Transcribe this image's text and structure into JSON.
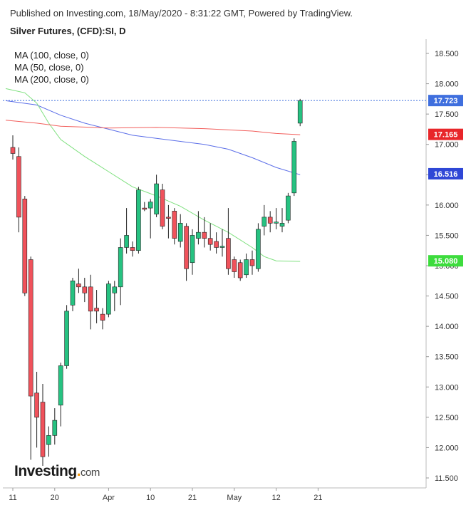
{
  "header": {
    "published": "Published on Investing.com, 18/May/2020 - 8:31:22 GMT, Powered by TradingView.",
    "title": "Silver Futures, (CFD):SI, D"
  },
  "legend": {
    "ma100": "MA (100, close, 0)",
    "ma50": "MA (50, close, 0)",
    "ma200": "MA (200, close, 0)"
  },
  "logo": {
    "brand": "Investing",
    "suffix": "com"
  },
  "colors": {
    "up": "#26c281",
    "down": "#f0525b",
    "ma100": "#5b6ee8",
    "ma50": "#7ee07e",
    "ma200": "#f25f5c",
    "last_price": "#3f6fde",
    "axis_text": "#333333"
  },
  "chart_data": {
    "type": "candlestick",
    "instrument": "Silver Futures, (CFD):SI",
    "interval": "D",
    "y_axis": {
      "position": "right",
      "ylim": [
        11.4,
        18.65
      ],
      "ticks": [
        "18.500",
        "18.000",
        "17.500",
        "17.000",
        "16.500",
        "16.000",
        "15.500",
        "15.000",
        "14.500",
        "14.000",
        "13.500",
        "13.000",
        "12.500",
        "12.000",
        "11.500"
      ]
    },
    "x_axis": {
      "ticks": [
        {
          "label": "11",
          "index": 0
        },
        {
          "label": "20",
          "index": 7
        },
        {
          "label": "Apr",
          "index": 16
        },
        {
          "label": "10",
          "index": 23
        },
        {
          "label": "21",
          "index": 30
        },
        {
          "label": "May",
          "index": 37
        },
        {
          "label": "12",
          "index": 44
        },
        {
          "label": "21",
          "index": 51
        }
      ]
    },
    "candles": [
      {
        "o": 16.95,
        "h": 17.15,
        "l": 16.75,
        "c": 16.85
      },
      {
        "o": 16.8,
        "h": 16.95,
        "l": 15.55,
        "c": 15.8
      },
      {
        "o": 16.1,
        "h": 16.15,
        "l": 14.5,
        "c": 14.55
      },
      {
        "o": 15.1,
        "h": 15.15,
        "l": 11.8,
        "c": 12.85
      },
      {
        "o": 12.9,
        "h": 13.25,
        "l": 12.0,
        "c": 12.5
      },
      {
        "o": 12.75,
        "h": 13.05,
        "l": 11.7,
        "c": 11.85
      },
      {
        "o": 12.05,
        "h": 12.35,
        "l": 11.85,
        "c": 12.2
      },
      {
        "o": 12.2,
        "h": 12.65,
        "l": 12.05,
        "c": 12.45
      },
      {
        "o": 12.7,
        "h": 13.4,
        "l": 12.35,
        "c": 13.35
      },
      {
        "o": 13.35,
        "h": 14.35,
        "l": 13.3,
        "c": 14.25
      },
      {
        "o": 14.35,
        "h": 14.8,
        "l": 14.25,
        "c": 14.75
      },
      {
        "o": 14.7,
        "h": 14.95,
        "l": 14.55,
        "c": 14.65
      },
      {
        "o": 14.65,
        "h": 14.8,
        "l": 14.4,
        "c": 14.55
      },
      {
        "o": 14.65,
        "h": 14.85,
        "l": 13.95,
        "c": 14.25
      },
      {
        "o": 14.3,
        "h": 14.6,
        "l": 14.05,
        "c": 14.25
      },
      {
        "o": 14.2,
        "h": 14.3,
        "l": 13.95,
        "c": 14.1
      },
      {
        "o": 14.2,
        "h": 14.75,
        "l": 14.15,
        "c": 14.7
      },
      {
        "o": 14.55,
        "h": 14.75,
        "l": 14.25,
        "c": 14.65
      },
      {
        "o": 14.65,
        "h": 15.45,
        "l": 14.35,
        "c": 15.3
      },
      {
        "o": 15.3,
        "h": 15.95,
        "l": 15.2,
        "c": 15.5
      },
      {
        "o": 15.3,
        "h": 15.4,
        "l": 15.15,
        "c": 15.25
      },
      {
        "o": 15.25,
        "h": 16.3,
        "l": 15.2,
        "c": 16.25
      },
      {
        "o": 15.95,
        "h": 16.05,
        "l": 15.9,
        "c": 15.93
      },
      {
        "o": 15.95,
        "h": 16.1,
        "l": 15.45,
        "c": 16.05
      },
      {
        "o": 15.85,
        "h": 16.5,
        "l": 15.8,
        "c": 16.35
      },
      {
        "o": 16.25,
        "h": 16.35,
        "l": 15.6,
        "c": 15.65
      },
      {
        "o": 15.8,
        "h": 16.0,
        "l": 15.45,
        "c": 15.78
      },
      {
        "o": 15.9,
        "h": 15.95,
        "l": 15.35,
        "c": 15.45
      },
      {
        "o": 15.4,
        "h": 15.85,
        "l": 15.3,
        "c": 15.7
      },
      {
        "o": 15.65,
        "h": 15.7,
        "l": 14.75,
        "c": 14.95
      },
      {
        "o": 15.05,
        "h": 15.6,
        "l": 14.85,
        "c": 15.5
      },
      {
        "o": 15.45,
        "h": 15.9,
        "l": 15.35,
        "c": 15.55
      },
      {
        "o": 15.55,
        "h": 15.8,
        "l": 15.3,
        "c": 15.45
      },
      {
        "o": 15.45,
        "h": 15.7,
        "l": 15.25,
        "c": 15.35
      },
      {
        "o": 15.4,
        "h": 15.55,
        "l": 15.2,
        "c": 15.3
      },
      {
        "o": 15.3,
        "h": 15.6,
        "l": 15.15,
        "c": 15.32
      },
      {
        "o": 15.45,
        "h": 15.95,
        "l": 14.85,
        "c": 14.95
      },
      {
        "o": 15.1,
        "h": 15.15,
        "l": 14.8,
        "c": 14.9
      },
      {
        "o": 15.05,
        "h": 15.1,
        "l": 14.75,
        "c": 14.8
      },
      {
        "o": 14.85,
        "h": 15.2,
        "l": 14.8,
        "c": 15.1
      },
      {
        "o": 15.1,
        "h": 15.25,
        "l": 14.85,
        "c": 15.0
      },
      {
        "o": 14.95,
        "h": 15.7,
        "l": 14.9,
        "c": 15.6
      },
      {
        "o": 15.65,
        "h": 16.0,
        "l": 15.5,
        "c": 15.8
      },
      {
        "o": 15.8,
        "h": 15.9,
        "l": 15.55,
        "c": 15.7
      },
      {
        "o": 15.7,
        "h": 15.95,
        "l": 15.6,
        "c": 15.72
      },
      {
        "o": 15.65,
        "h": 15.95,
        "l": 15.55,
        "c": 15.7
      },
      {
        "o": 15.75,
        "h": 16.2,
        "l": 15.7,
        "c": 16.15
      },
      {
        "o": 16.2,
        "h": 17.1,
        "l": 16.15,
        "c": 17.05
      },
      {
        "o": 17.35,
        "h": 17.75,
        "l": 17.3,
        "c": 17.72
      }
    ],
    "moving_averages": [
      {
        "name": "MA (100, close, 0)",
        "color": "#5b6ee8",
        "points": [
          [
            0,
            17.72
          ],
          [
            4,
            17.65
          ],
          [
            8,
            17.48
          ],
          [
            12,
            17.35
          ],
          [
            16,
            17.25
          ],
          [
            20,
            17.15
          ],
          [
            24,
            17.1
          ],
          [
            28,
            17.05
          ],
          [
            32,
            17.0
          ],
          [
            36,
            16.92
          ],
          [
            40,
            16.78
          ],
          [
            44,
            16.62
          ],
          [
            48,
            16.5
          ]
        ]
      },
      {
        "name": "MA (50, close, 0)",
        "color": "#7ee07e",
        "points": [
          [
            0,
            17.92
          ],
          [
            2,
            17.85
          ],
          [
            4,
            17.68
          ],
          [
            6,
            17.35
          ],
          [
            8,
            17.08
          ],
          [
            12,
            16.8
          ],
          [
            16,
            16.55
          ],
          [
            20,
            16.3
          ],
          [
            24,
            16.15
          ],
          [
            28,
            15.98
          ],
          [
            32,
            15.75
          ],
          [
            36,
            15.55
          ],
          [
            40,
            15.3
          ],
          [
            42,
            15.15
          ],
          [
            44,
            15.08
          ],
          [
            48,
            15.07
          ]
        ]
      },
      {
        "name": "MA (200, close, 0)",
        "color": "#f25f5c",
        "points": [
          [
            0,
            17.4
          ],
          [
            4,
            17.35
          ],
          [
            8,
            17.3
          ],
          [
            16,
            17.27
          ],
          [
            24,
            17.28
          ],
          [
            32,
            17.26
          ],
          [
            40,
            17.22
          ],
          [
            44,
            17.18
          ],
          [
            48,
            17.16
          ]
        ]
      }
    ],
    "price_labels": [
      {
        "value": 17.723,
        "text": "17.723",
        "color": "#3f6fde",
        "dotted_line": true
      },
      {
        "value": 17.165,
        "text": "17.165",
        "color": "#e8262a"
      },
      {
        "value": 16.516,
        "text": "16.516",
        "color": "#2f47d6"
      },
      {
        "value": 15.08,
        "text": "15.080",
        "color": "#3ddc3d"
      }
    ]
  }
}
